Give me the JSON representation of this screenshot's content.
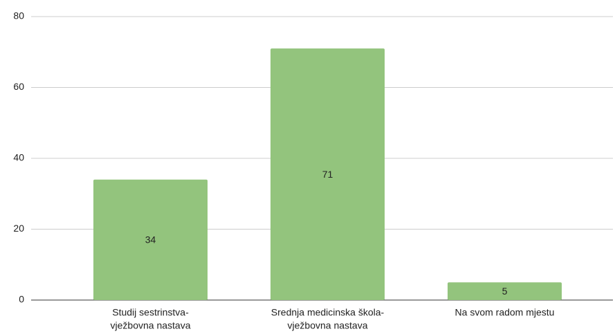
{
  "chart_data": {
    "type": "bar",
    "categories": [
      [
        "Studij sestrinstva-",
        "vježbovna nastava"
      ],
      [
        "Srednja medicinska škola-",
        "vježbovna nastava"
      ],
      [
        "Na svom radom mjestu"
      ]
    ],
    "values": [
      34,
      71,
      5
    ],
    "color": "#93c47d",
    "ylim": [
      0,
      80
    ],
    "yticks": [
      0,
      20,
      40,
      60,
      80
    ],
    "grid": true
  }
}
